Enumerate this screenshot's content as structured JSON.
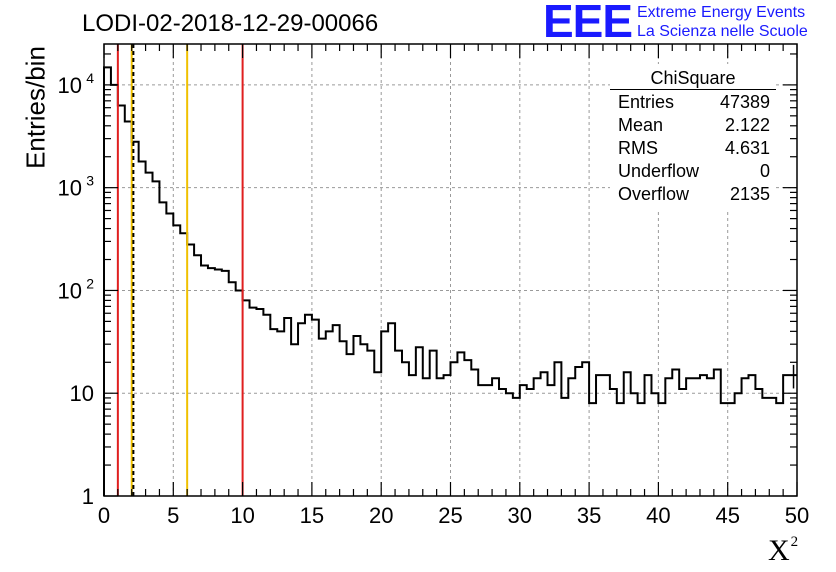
{
  "header": {
    "title": "LODI-02-2018-12-29-00066",
    "logo_text": "EEE",
    "logo_line1": "Extreme Energy Events",
    "logo_line2": "La Scienza nelle Scuole",
    "brand_color": "#1a1aff"
  },
  "stats": {
    "title": "ChiSquare",
    "rows": [
      {
        "label": "Entries",
        "value": "47389"
      },
      {
        "label": "Mean",
        "value": "2.122"
      },
      {
        "label": "RMS",
        "value": "4.631"
      },
      {
        "label": "Underflow",
        "value": "0"
      },
      {
        "label": "Overflow",
        "value": "2135"
      }
    ]
  },
  "chart_data": {
    "type": "histogram",
    "title": "LODI-02-2018-12-29-00066",
    "xlabel": "X",
    "xlabel_superscript": "2",
    "ylabel": "Entries/bin",
    "yscale": "log",
    "xlim": [
      0,
      50
    ],
    "ylim": [
      1,
      25000
    ],
    "x_ticks": [
      "0",
      "5",
      "10",
      "15",
      "20",
      "25",
      "30",
      "35",
      "40",
      "45",
      "50"
    ],
    "y_ticks": [
      {
        "value": 1,
        "base": "1",
        "exp": ""
      },
      {
        "value": 10,
        "base": "10",
        "exp": ""
      },
      {
        "value": 100,
        "base": "10",
        "exp": "2"
      },
      {
        "value": 1000,
        "base": "10",
        "exp": "3"
      },
      {
        "value": 10000,
        "base": "10",
        "exp": "4"
      }
    ],
    "grid": true,
    "bin_width": 0.5,
    "bin_counts": [
      14800,
      10000,
      6300,
      4400,
      2800,
      1800,
      1400,
      1150,
      720,
      560,
      430,
      360,
      280,
      220,
      175,
      165,
      160,
      155,
      120,
      100,
      80,
      68,
      66,
      58,
      42,
      40,
      54,
      30,
      48,
      58,
      52,
      34,
      40,
      46,
      32,
      24,
      36,
      30,
      26,
      16,
      40,
      48,
      26,
      20,
      15,
      28,
      14,
      26,
      14,
      15,
      20,
      25,
      21,
      17,
      12,
      12,
      14,
      11,
      10,
      9,
      12,
      11,
      14,
      16,
      12,
      20,
      9,
      14,
      18,
      20,
      8,
      15,
      15,
      11,
      8,
      16,
      10,
      8,
      15,
      10,
      8,
      14,
      17,
      11,
      14,
      14,
      15,
      14,
      17,
      8,
      8,
      10,
      14,
      15,
      11,
      9,
      9,
      8,
      15,
      15
    ],
    "vertical_lines": [
      {
        "x": 1,
        "color": "#e01f1f"
      },
      {
        "x": 2,
        "color": "#f0c000"
      },
      {
        "x": 2.12,
        "color": "#000000",
        "style": "dashed"
      },
      {
        "x": 6,
        "color": "#f0c000"
      },
      {
        "x": 10,
        "color": "#e01f1f"
      }
    ],
    "error_bar_last_bin": true
  }
}
